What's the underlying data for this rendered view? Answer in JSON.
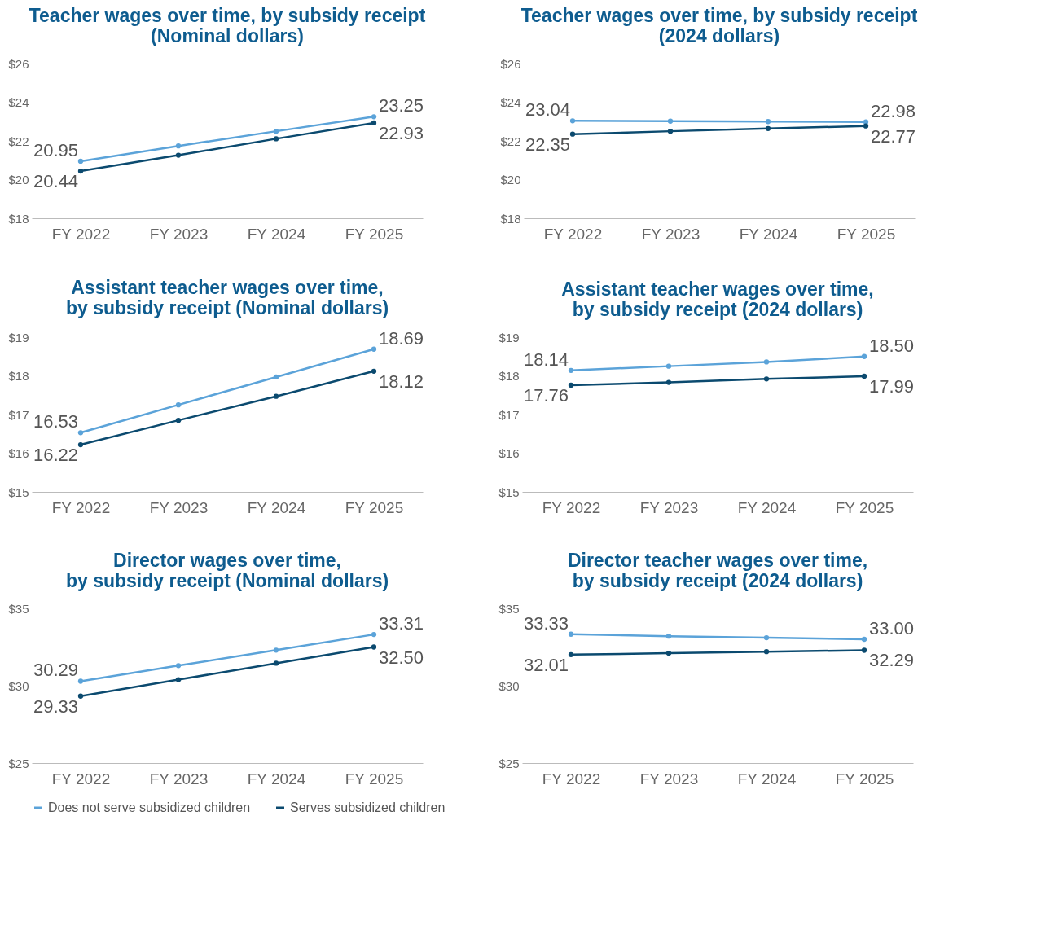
{
  "chart_data": [
    {
      "type": "line",
      "title": "Teacher wages over time, by subsidy receipt\n(Nominal dollars)",
      "categories": [
        "FY 2022",
        "FY 2023",
        "FY 2024",
        "FY 2025"
      ],
      "ylim": [
        18,
        26
      ],
      "yticks": [
        {
          "value": 18,
          "label": "$18"
        },
        {
          "value": 20,
          "label": "$20"
        },
        {
          "value": 22,
          "label": "$22"
        },
        {
          "value": 24,
          "label": "$24"
        },
        {
          "value": 26,
          "label": "$26"
        }
      ],
      "marker": "circle",
      "legend": "bottom",
      "series": [
        {
          "name": "Does not serve subsidized children",
          "color": "#5ba3d9",
          "values": [
            20.95,
            21.74,
            22.5,
            23.25
          ],
          "value_labels": [
            "20.95",
            null,
            null,
            "23.25"
          ]
        },
        {
          "name": "Serves subsidized children",
          "color": "#0b4a6f",
          "values": [
            20.44,
            21.26,
            22.11,
            22.93
          ],
          "value_labels": [
            "20.44",
            null,
            null,
            "22.93"
          ]
        }
      ]
    },
    {
      "type": "line",
      "title": "Teacher wages over time, by subsidy receipt\n(2024 dollars)",
      "categories": [
        "FY 2022",
        "FY 2023",
        "FY 2024",
        "FY 2025"
      ],
      "ylim": [
        18,
        26
      ],
      "yticks": [
        {
          "value": 18,
          "label": "$18"
        },
        {
          "value": 20,
          "label": "$20"
        },
        {
          "value": 22,
          "label": "$22"
        },
        {
          "value": 24,
          "label": "$24"
        },
        {
          "value": 26,
          "label": "$26"
        }
      ],
      "marker": "circle",
      "legend": "bottom",
      "series": [
        {
          "name": "Does not serve subsidized children",
          "color": "#5ba3d9",
          "values": [
            23.04,
            23.02,
            23.0,
            22.98
          ],
          "value_labels": [
            "23.04",
            null,
            null,
            "22.98"
          ]
        },
        {
          "name": "Serves subsidized children",
          "color": "#0b4a6f",
          "values": [
            22.35,
            22.5,
            22.64,
            22.77
          ],
          "value_labels": [
            "22.35",
            null,
            null,
            "22.77"
          ]
        }
      ]
    },
    {
      "type": "line",
      "title": "Assistant teacher wages over time,\nby subsidy receipt (Nominal dollars)",
      "categories": [
        "FY 2022",
        "FY 2023",
        "FY 2024",
        "FY 2025"
      ],
      "ylim": [
        15,
        19
      ],
      "yticks": [
        {
          "value": 15,
          "label": "$15"
        },
        {
          "value": 16,
          "label": "$16"
        },
        {
          "value": 17,
          "label": "$17"
        },
        {
          "value": 18,
          "label": "$18"
        },
        {
          "value": 19,
          "label": "$19"
        }
      ],
      "marker": "circle",
      "legend": "bottom",
      "series": [
        {
          "name": "Does not serve subsidized children",
          "color": "#5ba3d9",
          "values": [
            16.53,
            17.25,
            17.97,
            18.69
          ],
          "value_labels": [
            "16.53",
            null,
            null,
            "18.69"
          ]
        },
        {
          "name": "Serves subsidized children",
          "color": "#0b4a6f",
          "values": [
            16.22,
            16.85,
            17.47,
            18.12
          ],
          "value_labels": [
            "16.22",
            null,
            null,
            "18.12"
          ]
        }
      ]
    },
    {
      "type": "line",
      "title": "Assistant teacher wages over time,\nby subsidy receipt (2024 dollars)",
      "categories": [
        "FY 2022",
        "FY 2023",
        "FY 2024",
        "FY 2025"
      ],
      "ylim": [
        15,
        19
      ],
      "yticks": [
        {
          "value": 15,
          "label": "$15"
        },
        {
          "value": 16,
          "label": "$16"
        },
        {
          "value": 17,
          "label": "$17"
        },
        {
          "value": 18,
          "label": "$18"
        },
        {
          "value": 19,
          "label": "$19"
        }
      ],
      "marker": "circle",
      "legend": "bottom",
      "series": [
        {
          "name": "Does not serve subsidized children",
          "color": "#5ba3d9",
          "values": [
            18.14,
            18.25,
            18.36,
            18.5
          ],
          "value_labels": [
            "18.14",
            null,
            null,
            "18.50"
          ]
        },
        {
          "name": "Serves subsidized children",
          "color": "#0b4a6f",
          "values": [
            17.76,
            17.83,
            17.92,
            17.99
          ],
          "value_labels": [
            "17.76",
            null,
            null,
            "17.99"
          ]
        }
      ]
    },
    {
      "type": "line",
      "title": "Director wages over time,\nby subsidy receipt (Nominal dollars)",
      "categories": [
        "FY 2022",
        "FY 2023",
        "FY 2024",
        "FY 2025"
      ],
      "ylim": [
        25,
        35
      ],
      "yticks": [
        {
          "value": 25,
          "label": "$25"
        },
        {
          "value": 30,
          "label": "$30"
        },
        {
          "value": 35,
          "label": "$35"
        }
      ],
      "marker": "circle",
      "legend": "bottom",
      "series": [
        {
          "name": "Does not serve subsidized children",
          "color": "#5ba3d9",
          "values": [
            30.29,
            31.3,
            32.3,
            33.31
          ],
          "value_labels": [
            "30.29",
            null,
            null,
            "33.31"
          ]
        },
        {
          "name": "Serves subsidized children",
          "color": "#0b4a6f",
          "values": [
            29.33,
            30.39,
            31.45,
            32.5
          ],
          "value_labels": [
            "29.33",
            null,
            null,
            "32.50"
          ]
        }
      ]
    },
    {
      "type": "line",
      "title": "Director teacher wages over time,\nby subsidy receipt (2024 dollars)",
      "categories": [
        "FY 2022",
        "FY 2023",
        "FY 2024",
        "FY 2025"
      ],
      "ylim": [
        25,
        35
      ],
      "yticks": [
        {
          "value": 25,
          "label": "$25"
        },
        {
          "value": 30,
          "label": "$30"
        },
        {
          "value": 35,
          "label": "$35"
        }
      ],
      "marker": "circle",
      "legend": "bottom",
      "series": [
        {
          "name": "Does not serve subsidized children",
          "color": "#5ba3d9",
          "values": [
            33.33,
            33.2,
            33.1,
            33.0
          ],
          "value_labels": [
            "33.33",
            null,
            null,
            "33.00"
          ]
        },
        {
          "name": "Serves subsidized children",
          "color": "#0b4a6f",
          "values": [
            32.01,
            32.1,
            32.2,
            32.29
          ],
          "value_labels": [
            "32.01",
            null,
            null,
            "32.29"
          ]
        }
      ]
    }
  ]
}
